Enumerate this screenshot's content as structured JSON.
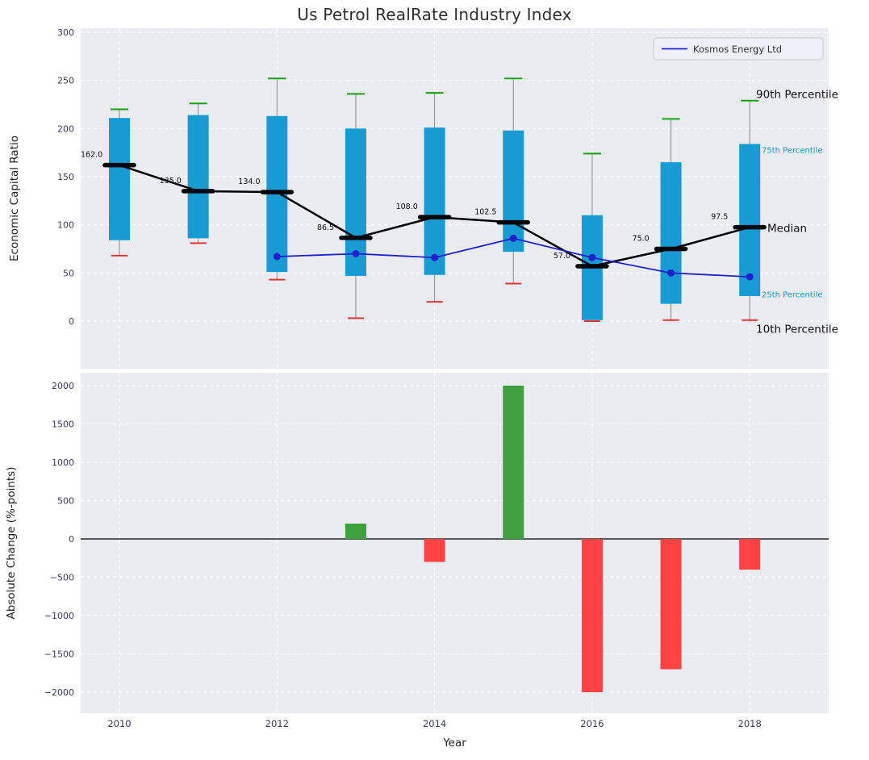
{
  "chart_data": [
    {
      "type": "boxplot+line",
      "title": "Us Petrol RealRate Industry Index",
      "ylabel": "Economic Capital Ratio",
      "ylim": [
        -50,
        305
      ],
      "yticks": [
        0,
        50,
        100,
        150,
        200,
        250,
        300
      ],
      "xticks": [
        2010,
        2012,
        2014,
        2016,
        2018
      ],
      "grid": "white-dashed",
      "legend": {
        "label": "Kosmos Energy Ltd",
        "position": "upper right"
      },
      "boxes": [
        {
          "year": 2010,
          "p10": 68,
          "q25": 84,
          "median": 162.0,
          "q75": 211,
          "p90": 220,
          "label": "162.0"
        },
        {
          "year": 2011,
          "p10": 81,
          "q25": 86,
          "median": 135.0,
          "q75": 214,
          "p90": 226,
          "label": "135.0"
        },
        {
          "year": 2012,
          "p10": 43,
          "q25": 51,
          "median": 134.0,
          "q75": 213,
          "p90": 252,
          "label": "134.0"
        },
        {
          "year": 2013,
          "p10": 3,
          "q25": 47,
          "median": 86.5,
          "q75": 200,
          "p90": 236,
          "label": "86.5"
        },
        {
          "year": 2014,
          "p10": 20,
          "q25": 48,
          "median": 108.0,
          "q75": 201,
          "p90": 237,
          "label": "108.0"
        },
        {
          "year": 2015,
          "p10": 39,
          "q25": 72,
          "median": 102.5,
          "q75": 198,
          "p90": 252,
          "label": "102.5"
        },
        {
          "year": 2016,
          "p10": 0,
          "q25": 1,
          "median": 57.0,
          "q75": 110,
          "p90": 174,
          "label": "57.0"
        },
        {
          "year": 2017,
          "p10": 1,
          "q25": 18,
          "median": 75.0,
          "q75": 165,
          "p90": 210,
          "label": "75.0"
        },
        {
          "year": 2018,
          "p10": 1,
          "q25": 26,
          "median": 97.5,
          "q75": 184,
          "p90": 229,
          "label": "97.5"
        }
      ],
      "series": [
        {
          "name": "Kosmos Energy Ltd",
          "x": [
            2012,
            2013,
            2014,
            2015,
            2016,
            2017,
            2018
          ],
          "y": [
            67,
            70,
            66,
            86,
            66,
            50,
            46
          ],
          "color": "#2020cf"
        }
      ],
      "annotations": [
        {
          "text": "90th Percentile",
          "value": 235,
          "color": "#111111",
          "size": 13.5,
          "x": 937
        },
        {
          "text": "75th Percentile",
          "value": 178,
          "color": "#1899c6",
          "size": 10,
          "x": 944
        },
        {
          "text": "Median",
          "value": 96,
          "color": "#111111",
          "size": 13.5,
          "x": 951
        },
        {
          "text": "25th Percentile",
          "value": 28,
          "color": "#1899c6",
          "size": 10,
          "x": 944
        },
        {
          "text": "10th Percentile",
          "value": -9,
          "color": "#111111",
          "size": 13.5,
          "x": 937
        }
      ],
      "colors": {
        "box": "#189bd2",
        "cap_top": "#12a112",
        "cap_bottom": "#e53535",
        "whisker": "#8a8a8a",
        "median": "#000000",
        "plot_bg": "#ebebf2",
        "grid": "#ffffff",
        "tick": "#333a5e"
      }
    },
    {
      "type": "bar",
      "ylabel": "Absolute Change (%-points)",
      "xlabel": "Year",
      "ylim": [
        -2200,
        2200
      ],
      "yticks": [
        -2000,
        -1500,
        -1000,
        -500,
        0,
        500,
        1000,
        1500,
        2000
      ],
      "categories": [
        2010,
        2011,
        2012,
        2013,
        2014,
        2015,
        2016,
        2017,
        2018
      ],
      "values": [
        0,
        0,
        0,
        200,
        -300,
        2000,
        -2000,
        -1700,
        -400
      ],
      "colors": {
        "positive": "#3fa03f",
        "negative": "#ff4242",
        "zero_line": "#000000"
      }
    }
  ]
}
